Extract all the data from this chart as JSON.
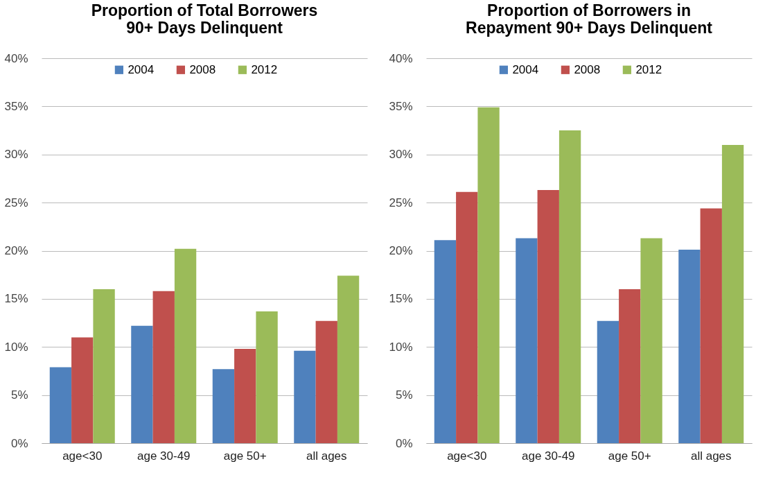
{
  "chart_data": [
    {
      "type": "bar",
      "title": "Proportion of Total Borrowers\n90+ Days Delinquent",
      "categories": [
        "age<30",
        "age 30-49",
        "age 50+",
        "all ages"
      ],
      "series": [
        {
          "name": "2004",
          "color": "#4f81bd",
          "values": [
            7.9,
            12.2,
            7.7,
            9.6
          ]
        },
        {
          "name": "2008",
          "color": "#c0504d",
          "values": [
            11.0,
            15.8,
            9.8,
            12.7
          ]
        },
        {
          "name": "2012",
          "color": "#9bbb59",
          "values": [
            16.0,
            20.2,
            13.7,
            17.4
          ]
        }
      ],
      "ylim": [
        0,
        40
      ],
      "yticks": [
        {
          "value": 0,
          "label": "0%"
        },
        {
          "value": 5,
          "label": "5%"
        },
        {
          "value": 10,
          "label": "10%"
        },
        {
          "value": 15,
          "label": "15%"
        },
        {
          "value": 20,
          "label": "20%"
        },
        {
          "value": 25,
          "label": "25%"
        },
        {
          "value": 30,
          "label": "30%"
        },
        {
          "value": 35,
          "label": "35%"
        },
        {
          "value": 40,
          "label": "40%"
        }
      ],
      "grid": "y",
      "legend": "top"
    },
    {
      "type": "bar",
      "title": "Proportion of Borrowers in\nRepayment 90+ Days Delinquent",
      "categories": [
        "age<30",
        "age 30-49",
        "age 50+",
        "all ages"
      ],
      "series": [
        {
          "name": "2004",
          "color": "#4f81bd",
          "values": [
            21.1,
            21.3,
            12.7,
            20.1
          ]
        },
        {
          "name": "2008",
          "color": "#c0504d",
          "values": [
            26.1,
            26.3,
            16.0,
            24.4
          ]
        },
        {
          "name": "2012",
          "color": "#9bbb59",
          "values": [
            34.9,
            32.5,
            21.3,
            31.0
          ]
        }
      ],
      "ylim": [
        0,
        40
      ],
      "yticks": [
        {
          "value": 0,
          "label": "0%"
        },
        {
          "value": 5,
          "label": "5%"
        },
        {
          "value": 10,
          "label": "10%"
        },
        {
          "value": 15,
          "label": "15%"
        },
        {
          "value": 20,
          "label": "20%"
        },
        {
          "value": 25,
          "label": "25%"
        },
        {
          "value": 30,
          "label": "30%"
        },
        {
          "value": 35,
          "label": "35%"
        },
        {
          "value": 40,
          "label": "40%"
        }
      ],
      "grid": "y",
      "legend": "top"
    }
  ]
}
